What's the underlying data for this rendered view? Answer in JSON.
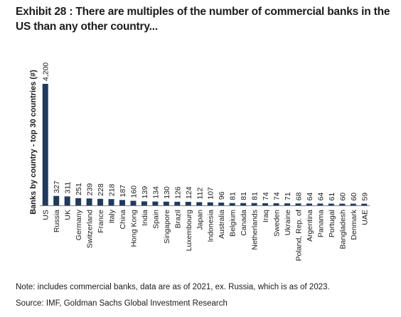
{
  "header": {
    "title": "Exhibit 28 : There are multiples of the number of commercial banks in the US than any other country..."
  },
  "footer": {
    "note": "Note: includes commercial banks, data are as of 2021, ex. Russia, which is as of 2023.",
    "source": "Source: IMF, Goldman Sachs Global Investment Research"
  },
  "colors": {
    "bar": "#1f3a5f",
    "text": "#1a1a1a",
    "axis": "#7f7f7f"
  },
  "chart_data": {
    "type": "bar",
    "title": "",
    "ylabel": "Banks by country - top 30 countries (#)",
    "xlabel": "",
    "ylim": [
      0,
      4200
    ],
    "grid": false,
    "legend": "none",
    "categories": [
      "US",
      "Russia",
      "UK",
      "Germany",
      "Switzerland",
      "France",
      "Italy",
      "China",
      "Hong Kong",
      "India",
      "Spain",
      "Singapore",
      "Brazil",
      "Luxembourg",
      "Japan",
      "Indonesia",
      "Australia",
      "Belgium",
      "Canada",
      "Netherlands",
      "Iraq",
      "Sweden",
      "Ukraine",
      "Poland, Rep. of",
      "Argentina",
      "Panama",
      "Portugal",
      "Bangladesh",
      "Denmark",
      "UAE"
    ],
    "values": [
      4200,
      327,
      311,
      251,
      239,
      228,
      218,
      187,
      160,
      139,
      134,
      130,
      126,
      124,
      112,
      107,
      96,
      81,
      81,
      81,
      74,
      74,
      71,
      68,
      64,
      64,
      61,
      60,
      60,
      59
    ],
    "value_labels": [
      "4,200",
      "327",
      "311",
      "251",
      "239",
      "228",
      "218",
      "187",
      "160",
      "139",
      "134",
      "130",
      "126",
      "124",
      "112",
      "107",
      "96",
      "81",
      "81",
      "81",
      "74",
      "74",
      "71",
      "68",
      "64",
      "64",
      "61",
      "60",
      "60",
      "59"
    ]
  }
}
